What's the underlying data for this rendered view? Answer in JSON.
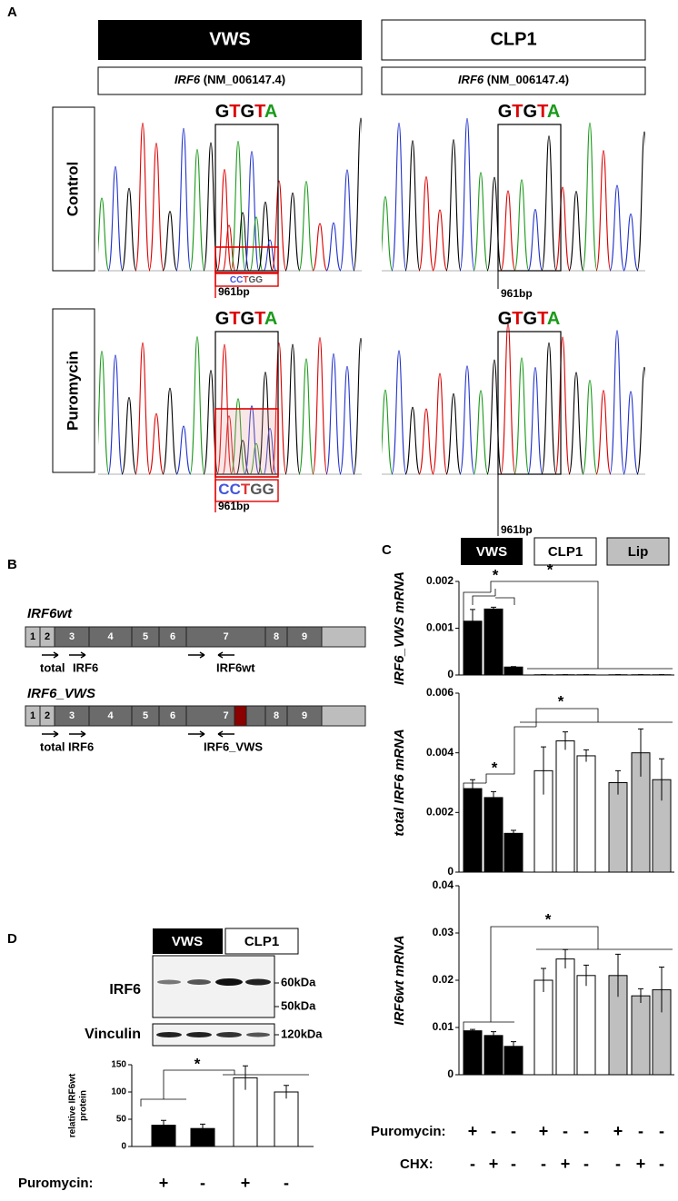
{
  "panel_a": {
    "label": "A",
    "groups": [
      "VWS",
      "CLP1"
    ],
    "gene": "IRF6",
    "accession": "(NM_006147.4)",
    "rows": [
      "Control",
      "Puromycin"
    ],
    "reference_bases": [
      "G",
      "T",
      "G",
      "T",
      "A"
    ],
    "mutant_bases": [
      "C",
      "C",
      "T",
      "G",
      "G"
    ],
    "position": "961bp"
  },
  "panel_b": {
    "label": "B",
    "exons": [
      "1",
      "2",
      "3",
      "4",
      "5",
      "6",
      "7",
      "8",
      "9"
    ],
    "constructs": [
      {
        "name": "IRF6wt",
        "primers": [
          "total",
          "IRF6",
          "IRF6wt"
        ]
      },
      {
        "name": "IRF6_VWS",
        "primers": [
          "total IRF6",
          "IRF6_VWS"
        ]
      }
    ]
  },
  "panel_c": {
    "label": "C",
    "legend": [
      "VWS",
      "CLP1",
      "Lip"
    ],
    "treatments": [
      {
        "name": "Puromycin:",
        "signs": [
          "+",
          "-",
          "-",
          "+",
          "-",
          "-",
          "+",
          "-",
          "-"
        ]
      },
      {
        "name": "CHX:",
        "signs": [
          "-",
          "+",
          "-",
          "-",
          "+",
          "-",
          "-",
          "+",
          "-"
        ]
      }
    ]
  },
  "panel_d": {
    "label": "D",
    "groups": [
      "VWS",
      "CLP1"
    ],
    "blots": [
      "IRF6",
      "Vinculin"
    ],
    "markers": [
      "60kDa",
      "50kDa",
      "120kDa"
    ],
    "treatment": {
      "name": "Puromycin:",
      "signs": [
        "+",
        "-",
        "+",
        "-"
      ]
    }
  },
  "chart_data": [
    {
      "type": "bar",
      "ylabel": "IRF6_VWS mRNA",
      "ylim": [
        0,
        0.002
      ],
      "yticks": [
        0,
        0.001,
        0.002
      ],
      "values": [
        0.00115,
        0.00141,
        0.00017,
        5e-06,
        5e-06,
        5e-06,
        5e-06,
        5e-06,
        5e-06
      ],
      "errors": [
        0.00025,
        4e-05,
        1e-05,
        2e-06,
        2e-06,
        2e-06,
        2e-06,
        2e-06,
        2e-06
      ],
      "colors": [
        "#000000",
        "#000000",
        "#000000",
        "#ffffff",
        "#ffffff",
        "#ffffff",
        "#bfbfbf",
        "#bfbfbf",
        "#bfbfbf"
      ],
      "annotations": [
        "*",
        "*"
      ]
    },
    {
      "type": "bar",
      "ylabel": "total IRF6 mRNA",
      "ylim": [
        0,
        0.006
      ],
      "yticks": [
        0,
        0.002,
        0.004,
        0.006
      ],
      "values": [
        0.0028,
        0.0025,
        0.0013,
        0.0034,
        0.0044,
        0.0039,
        0.003,
        0.004,
        0.0031
      ],
      "errors": [
        0.0003,
        0.0002,
        0.0001,
        0.0008,
        0.0003,
        0.0002,
        0.0004,
        0.0008,
        0.0007
      ],
      "colors": [
        "#000000",
        "#000000",
        "#000000",
        "#ffffff",
        "#ffffff",
        "#ffffff",
        "#bfbfbf",
        "#bfbfbf",
        "#bfbfbf"
      ],
      "annotations": [
        "*",
        "*"
      ]
    },
    {
      "type": "bar",
      "ylabel": "IRF6wt mRNA",
      "ylim": [
        0,
        0.04
      ],
      "yticks": [
        0,
        0.01,
        0.02,
        0.03,
        0.04
      ],
      "values": [
        0.0093,
        0.0083,
        0.006,
        0.02,
        0.0245,
        0.021,
        0.021,
        0.0167,
        0.018
      ],
      "errors": [
        0.0003,
        0.0008,
        0.001,
        0.0025,
        0.002,
        0.0022,
        0.0045,
        0.0015,
        0.0048
      ],
      "colors": [
        "#000000",
        "#000000",
        "#000000",
        "#ffffff",
        "#ffffff",
        "#ffffff",
        "#bfbfbf",
        "#bfbfbf",
        "#bfbfbf"
      ],
      "annotations": [
        "*"
      ]
    },
    {
      "type": "bar",
      "ylabel": [
        "relative IRF6wt",
        "protein"
      ],
      "ylim": [
        0,
        150
      ],
      "yticks": [
        0,
        50,
        100,
        150
      ],
      "values": [
        39,
        33,
        126,
        100
      ],
      "errors": [
        9,
        8,
        22,
        12
      ],
      "colors": [
        "#000000",
        "#000000",
        "#ffffff",
        "#ffffff"
      ],
      "annotations": [
        "*"
      ]
    }
  ]
}
